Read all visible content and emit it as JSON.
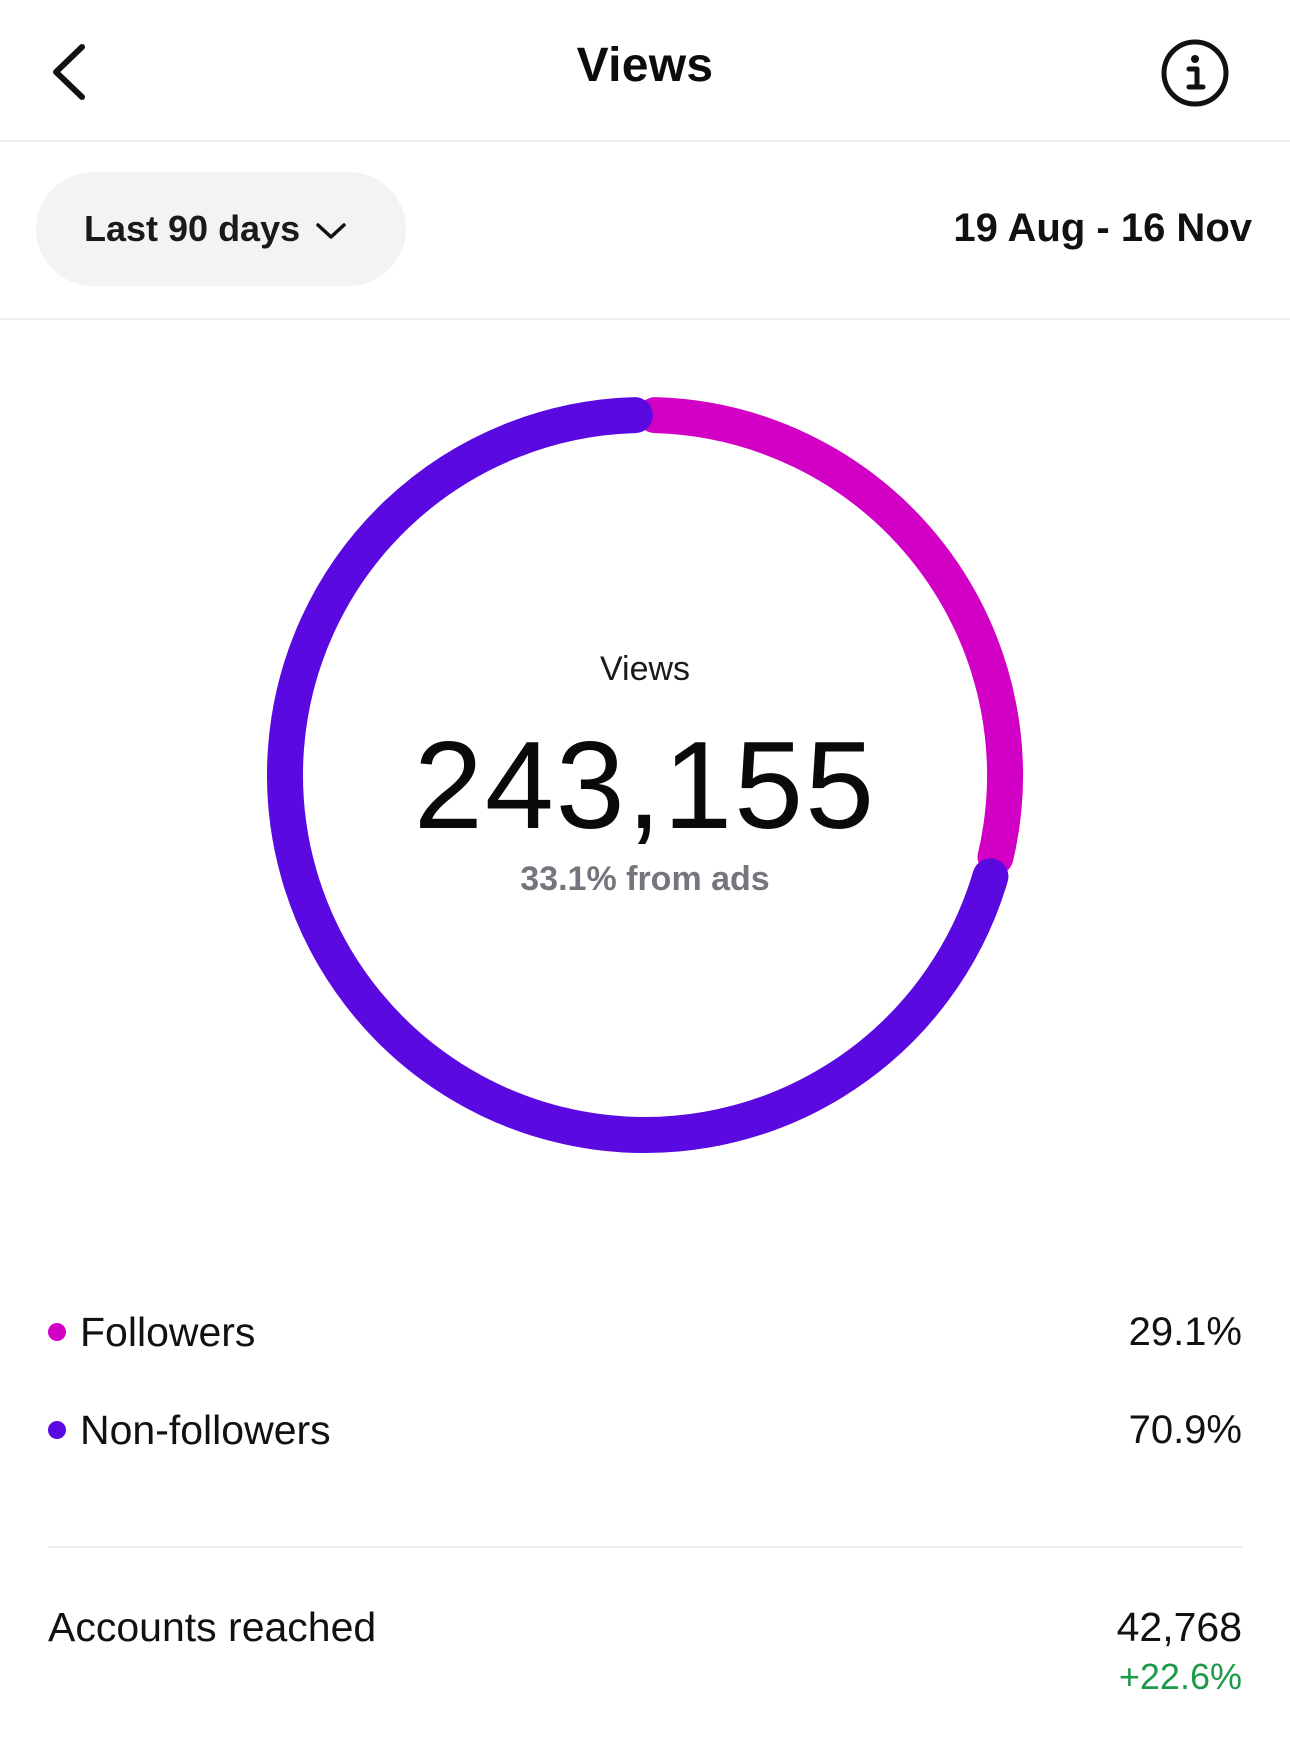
{
  "header": {
    "title": "Views",
    "back_icon": "chevron-left-icon",
    "info_icon": "info-icon"
  },
  "filter": {
    "range_label": "Last 90 days",
    "range_icon": "chevron-down-icon",
    "date_range": "19 Aug - 16 Nov"
  },
  "summary": {
    "label": "Views",
    "total": "243,155",
    "ads_note": "33.1% from ads"
  },
  "chart_data": {
    "type": "pie",
    "style": "donut",
    "categories": [
      "Followers",
      "Non-followers"
    ],
    "values": [
      29.1,
      70.9
    ],
    "colors": [
      "#d100c4",
      "#5a0ae0"
    ],
    "center_label": "Views",
    "center_value": "243,155"
  },
  "legend": [
    {
      "name": "Followers",
      "percent": "29.1%",
      "color": "#d100c4"
    },
    {
      "name": "Non-followers",
      "percent": "70.9%",
      "color": "#5a0ae0"
    }
  ],
  "reach": {
    "label": "Accounts reached",
    "value": "42,768",
    "change": "+22.6%",
    "change_color": "#1f9a4a"
  }
}
